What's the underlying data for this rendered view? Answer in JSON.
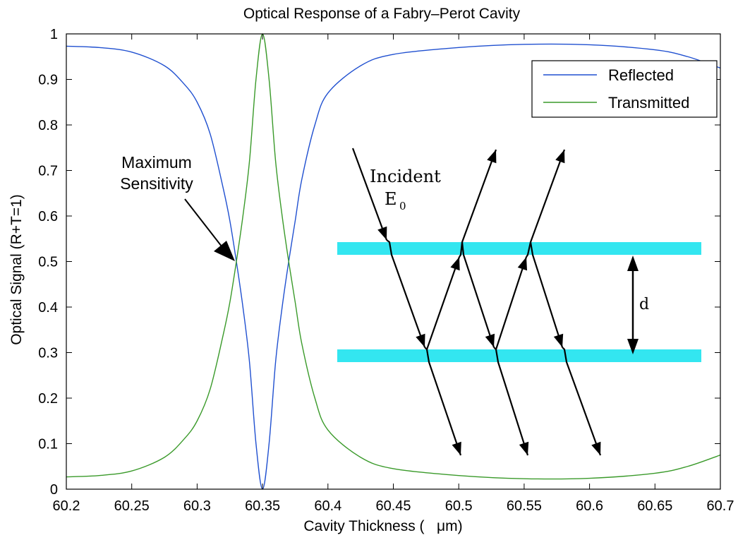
{
  "chart_data": {
    "type": "line",
    "title": "Optical Response of a Fabry–Perot Cavity",
    "xlabel": "Cavity Thickness (   μm)",
    "ylabel": "Optical Signal (R+T=1)",
    "xlim": [
      60.2,
      60.7
    ],
    "ylim": [
      0,
      1
    ],
    "xticks": [
      "60.2",
      "60.25",
      "60.3",
      "60.35",
      "60.4",
      "60.45",
      "60.5",
      "60.55",
      "60.6",
      "60.65",
      "60.7"
    ],
    "yticks": [
      "0",
      "0.1",
      "0.2",
      "0.3",
      "0.4",
      "0.5",
      "0.6",
      "0.7",
      "0.8",
      "0.9",
      "1"
    ],
    "grid": false,
    "legend_position": "top-right",
    "series": [
      {
        "name": "Reflected",
        "color": "#2050d0",
        "x": [
          60.2,
          60.225,
          60.25,
          60.275,
          60.29,
          60.3,
          60.31,
          60.32,
          60.325,
          60.33,
          60.335,
          60.34,
          60.345,
          60.35,
          60.355,
          60.36,
          60.365,
          60.37,
          60.375,
          60.38,
          60.39,
          60.4,
          60.425,
          60.45,
          60.5,
          60.55,
          60.6,
          60.65,
          60.675,
          60.7
        ],
        "values": [
          0.973,
          0.97,
          0.96,
          0.93,
          0.89,
          0.85,
          0.78,
          0.66,
          0.59,
          0.5,
          0.4,
          0.28,
          0.1,
          0.0,
          0.1,
          0.28,
          0.4,
          0.5,
          0.59,
          0.68,
          0.8,
          0.87,
          0.93,
          0.955,
          0.97,
          0.977,
          0.976,
          0.965,
          0.95,
          0.925
        ]
      },
      {
        "name": "Transmitted",
        "color": "#3a9a2a",
        "x": [
          60.2,
          60.225,
          60.25,
          60.275,
          60.29,
          60.3,
          60.31,
          60.32,
          60.325,
          60.33,
          60.335,
          60.34,
          60.345,
          60.35,
          60.355,
          60.36,
          60.365,
          60.37,
          60.375,
          60.38,
          60.39,
          60.4,
          60.425,
          60.45,
          60.5,
          60.55,
          60.6,
          60.65,
          60.675,
          60.7
        ],
        "values": [
          0.027,
          0.03,
          0.04,
          0.07,
          0.11,
          0.15,
          0.22,
          0.34,
          0.41,
          0.5,
          0.6,
          0.72,
          0.9,
          1.0,
          0.9,
          0.72,
          0.6,
          0.5,
          0.41,
          0.32,
          0.2,
          0.13,
          0.07,
          0.045,
          0.03,
          0.023,
          0.024,
          0.035,
          0.05,
          0.075
        ]
      }
    ],
    "annotations": {
      "max_sensitivity_line1": "Maximum",
      "max_sensitivity_line2": "Sensitivity",
      "incident": "Incident",
      "e_main": "E",
      "e_sub": "0",
      "d_label": "d"
    },
    "diagram_color": "#33e6f0",
    "arrow_color": "#000000"
  }
}
